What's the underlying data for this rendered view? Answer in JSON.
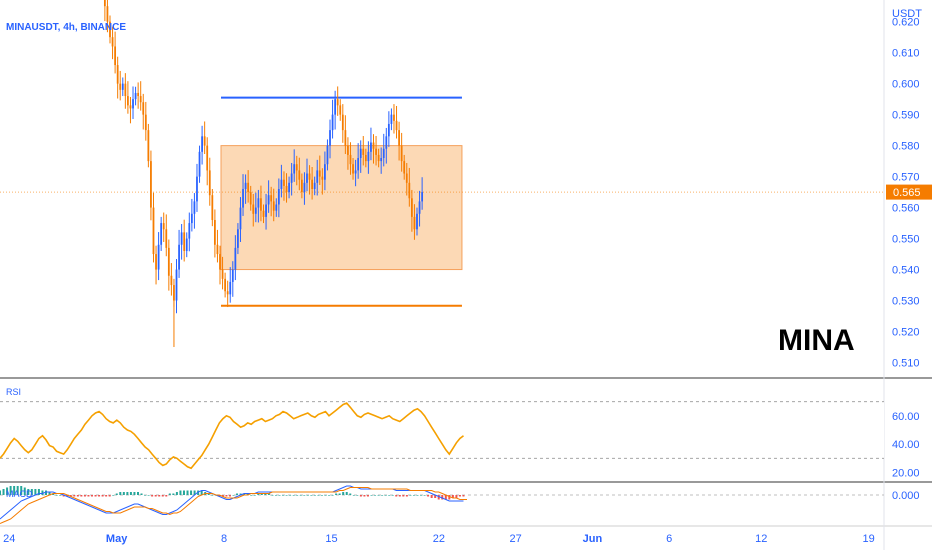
{
  "header": {
    "symbol_label": "MINAUSDT, 4h, BINANCE"
  },
  "chart_data": {
    "type": "candlestick",
    "title": "MINAUSDT, 4h, BINANCE",
    "watermark": "MINA",
    "currency_label": "USDT",
    "last_price": 0.565,
    "last_price_label": "0.565",
    "price_ticks": [
      "0.620",
      "0.610",
      "0.600",
      "0.590",
      "0.580",
      "0.570",
      "0.560",
      "0.550",
      "0.540",
      "0.530",
      "0.520",
      "0.510"
    ],
    "price_tick_values": [
      0.62,
      0.61,
      0.6,
      0.59,
      0.58,
      0.57,
      0.56,
      0.55,
      0.54,
      0.53,
      0.52,
      0.51
    ],
    "price_range": [
      0.505,
      0.627
    ],
    "x_labels": [
      "24",
      "May",
      "8",
      "15",
      "22",
      "27",
      "Jun",
      "6",
      "12",
      "19"
    ],
    "x_positions_days": [
      -7,
      0,
      7,
      14,
      21,
      26,
      31,
      36,
      42,
      49
    ],
    "x_range_days": [
      -7.6,
      50
    ],
    "candle_interval_days": 0.1667,
    "first_candle_day": -2.1,
    "close_series": [
      0.65,
      0.645,
      0.64,
      0.645,
      0.642,
      0.638,
      0.632,
      0.63,
      0.625,
      0.62,
      0.615,
      0.612,
      0.606,
      0.6,
      0.598,
      0.6,
      0.596,
      0.593,
      0.592,
      0.595,
      0.597,
      0.596,
      0.594,
      0.59,
      0.585,
      0.575,
      0.56,
      0.545,
      0.54,
      0.548,
      0.555,
      0.553,
      0.547,
      0.538,
      0.535,
      0.53,
      0.54,
      0.548,
      0.552,
      0.546,
      0.55,
      0.555,
      0.558,
      0.562,
      0.57,
      0.578,
      0.583,
      0.58,
      0.572,
      0.564,
      0.556,
      0.548,
      0.545,
      0.54,
      0.537,
      0.533,
      0.532,
      0.536,
      0.54,
      0.547,
      0.553,
      0.56,
      0.566,
      0.568,
      0.565,
      0.561,
      0.558,
      0.56,
      0.563,
      0.559,
      0.557,
      0.561,
      0.564,
      0.562,
      0.559,
      0.561,
      0.566,
      0.569,
      0.567,
      0.565,
      0.568,
      0.571,
      0.574,
      0.572,
      0.569,
      0.565,
      0.568,
      0.571,
      0.569,
      0.566,
      0.568,
      0.572,
      0.57,
      0.569,
      0.574,
      0.58,
      0.585,
      0.59,
      0.595,
      0.593,
      0.59,
      0.585,
      0.58,
      0.577,
      0.574,
      0.571,
      0.572,
      0.576,
      0.579,
      0.577,
      0.575,
      0.578,
      0.581,
      0.579,
      0.577,
      0.575,
      0.576,
      0.579,
      0.583,
      0.587,
      0.59,
      0.588,
      0.585,
      0.58,
      0.575,
      0.571,
      0.568,
      0.563,
      0.557,
      0.553,
      0.558,
      0.562,
      0.565
    ],
    "zones": {
      "resistance_line": {
        "price": 0.5955,
        "from_day": 6.8,
        "to_day": 22.5,
        "color": "#2962ff"
      },
      "support_line": {
        "price": 0.5283,
        "from_day": 6.8,
        "to_day": 22.5,
        "color": "#f57c00"
      },
      "range_box": {
        "top": 0.58,
        "bottom": 0.54,
        "from_day": 6.8,
        "to_day": 22.5,
        "fill": "#fcd9b5",
        "border": "#f5a05a"
      }
    },
    "colors": {
      "up": "#2962ff",
      "down": "#f57c00",
      "text_blue": "#2962ff",
      "rsi": "#f5a000",
      "macd": "#2962ff",
      "signal": "#f57c00",
      "hist_up": "#26a69a",
      "hist_down": "#ef5350"
    },
    "rsi": {
      "label": "RSI",
      "ticks": [
        "60.00",
        "40.00",
        "20.00"
      ],
      "tick_values": [
        60,
        40,
        20
      ],
      "range": [
        14,
        86
      ],
      "band_upper": 70,
      "band_lower": 30,
      "values": [
        30,
        33,
        37,
        41,
        44,
        42,
        39,
        36,
        34,
        36,
        40,
        44,
        46,
        43,
        39,
        38,
        35,
        34,
        33,
        36,
        40,
        44,
        47,
        50,
        54,
        57,
        60,
        62,
        63,
        61,
        58,
        56,
        55,
        57,
        55,
        52,
        50,
        49,
        47,
        44,
        41,
        38,
        36,
        33,
        30,
        27,
        25,
        26,
        29,
        31,
        30,
        28,
        26,
        24,
        23,
        26,
        29,
        32,
        36,
        40,
        45,
        50,
        55,
        58,
        60,
        59,
        56,
        54,
        52,
        53,
        55,
        54,
        56,
        57,
        58,
        56,
        57,
        58,
        60,
        61,
        63,
        62,
        60,
        58,
        59,
        60,
        61,
        62,
        60,
        59,
        61,
        62,
        63,
        60,
        62,
        64,
        66,
        68,
        69,
        66,
        63,
        60,
        59,
        61,
        62,
        61,
        60,
        59,
        58,
        59,
        60,
        58,
        57,
        56,
        58,
        60,
        62,
        64,
        65,
        63,
        60,
        56,
        52,
        48,
        44,
        40,
        36,
        33,
        37,
        41,
        44,
        46
      ]
    },
    "macd": {
      "label": "MACD",
      "ticks": [
        "0.000"
      ],
      "tick_values": [
        0
      ],
      "range": [
        -0.02,
        0.008
      ],
      "macd_line": [
        -0.016,
        -0.014,
        -0.012,
        -0.01,
        -0.008,
        -0.006,
        -0.004,
        -0.003,
        -0.002,
        -0.001,
        0.0,
        0.001,
        0.001,
        0.002,
        0.002,
        0.002,
        0.001,
        0.001,
        0.0,
        -0.001,
        -0.002,
        -0.003,
        -0.004,
        -0.005,
        -0.006,
        -0.007,
        -0.008,
        -0.009,
        -0.01,
        -0.011,
        -0.012,
        -0.012,
        -0.012,
        -0.011,
        -0.01,
        -0.009,
        -0.008,
        -0.007,
        -0.006,
        -0.006,
        -0.007,
        -0.008,
        -0.009,
        -0.01,
        -0.011,
        -0.012,
        -0.013,
        -0.013,
        -0.012,
        -0.011,
        -0.01,
        -0.008,
        -0.006,
        -0.004,
        -0.002,
        0.0,
        0.002,
        0.003,
        0.003,
        0.002,
        0.001,
        0.0,
        -0.001,
        -0.002,
        -0.003,
        -0.003,
        -0.002,
        -0.001,
        0.0,
        0.001,
        0.001,
        0.001,
        0.001,
        0.002,
        0.002,
        0.002,
        0.002,
        0.002,
        0.002,
        0.002,
        0.002,
        0.002,
        0.002,
        0.002,
        0.002,
        0.002,
        0.002,
        0.002,
        0.002,
        0.002,
        0.002,
        0.002,
        0.002,
        0.002,
        0.002,
        0.003,
        0.004,
        0.005,
        0.006,
        0.006,
        0.005,
        0.005,
        0.004,
        0.004,
        0.004,
        0.004,
        0.004,
        0.004,
        0.004,
        0.004,
        0.004,
        0.004,
        0.003,
        0.003,
        0.003,
        0.003,
        0.003,
        0.003,
        0.003,
        0.003,
        0.003,
        0.002,
        0.001,
        0.0,
        -0.001,
        -0.002,
        -0.003,
        -0.004,
        -0.004,
        -0.004,
        -0.004,
        -0.004
      ],
      "signal_line": [
        -0.019,
        -0.018,
        -0.017,
        -0.016,
        -0.014,
        -0.012,
        -0.01,
        -0.008,
        -0.006,
        -0.005,
        -0.004,
        -0.003,
        -0.002,
        -0.001,
        0.0,
        0.001,
        0.001,
        0.001,
        0.001,
        0.0,
        -0.001,
        -0.002,
        -0.003,
        -0.004,
        -0.005,
        -0.006,
        -0.007,
        -0.008,
        -0.009,
        -0.01,
        -0.011,
        -0.011,
        -0.012,
        -0.012,
        -0.012,
        -0.011,
        -0.01,
        -0.009,
        -0.008,
        -0.008,
        -0.008,
        -0.008,
        -0.009,
        -0.009,
        -0.01,
        -0.011,
        -0.012,
        -0.012,
        -0.013,
        -0.012,
        -0.012,
        -0.011,
        -0.009,
        -0.007,
        -0.005,
        -0.003,
        -0.001,
        0.0,
        0.001,
        0.001,
        0.001,
        0.0,
        0.0,
        -0.001,
        -0.002,
        -0.002,
        -0.002,
        -0.002,
        -0.001,
        0.0,
        0.0,
        0.001,
        0.001,
        0.001,
        0.001,
        0.001,
        0.001,
        0.002,
        0.002,
        0.002,
        0.002,
        0.002,
        0.002,
        0.002,
        0.002,
        0.002,
        0.002,
        0.002,
        0.002,
        0.002,
        0.002,
        0.002,
        0.002,
        0.002,
        0.002,
        0.002,
        0.003,
        0.003,
        0.004,
        0.005,
        0.005,
        0.005,
        0.005,
        0.005,
        0.005,
        0.004,
        0.004,
        0.004,
        0.004,
        0.004,
        0.004,
        0.004,
        0.004,
        0.004,
        0.004,
        0.004,
        0.003,
        0.003,
        0.003,
        0.003,
        0.003,
        0.003,
        0.003,
        0.002,
        0.002,
        0.001,
        0.0,
        -0.001,
        -0.002,
        -0.002,
        -0.003,
        -0.003,
        -0.003
      ]
    }
  }
}
